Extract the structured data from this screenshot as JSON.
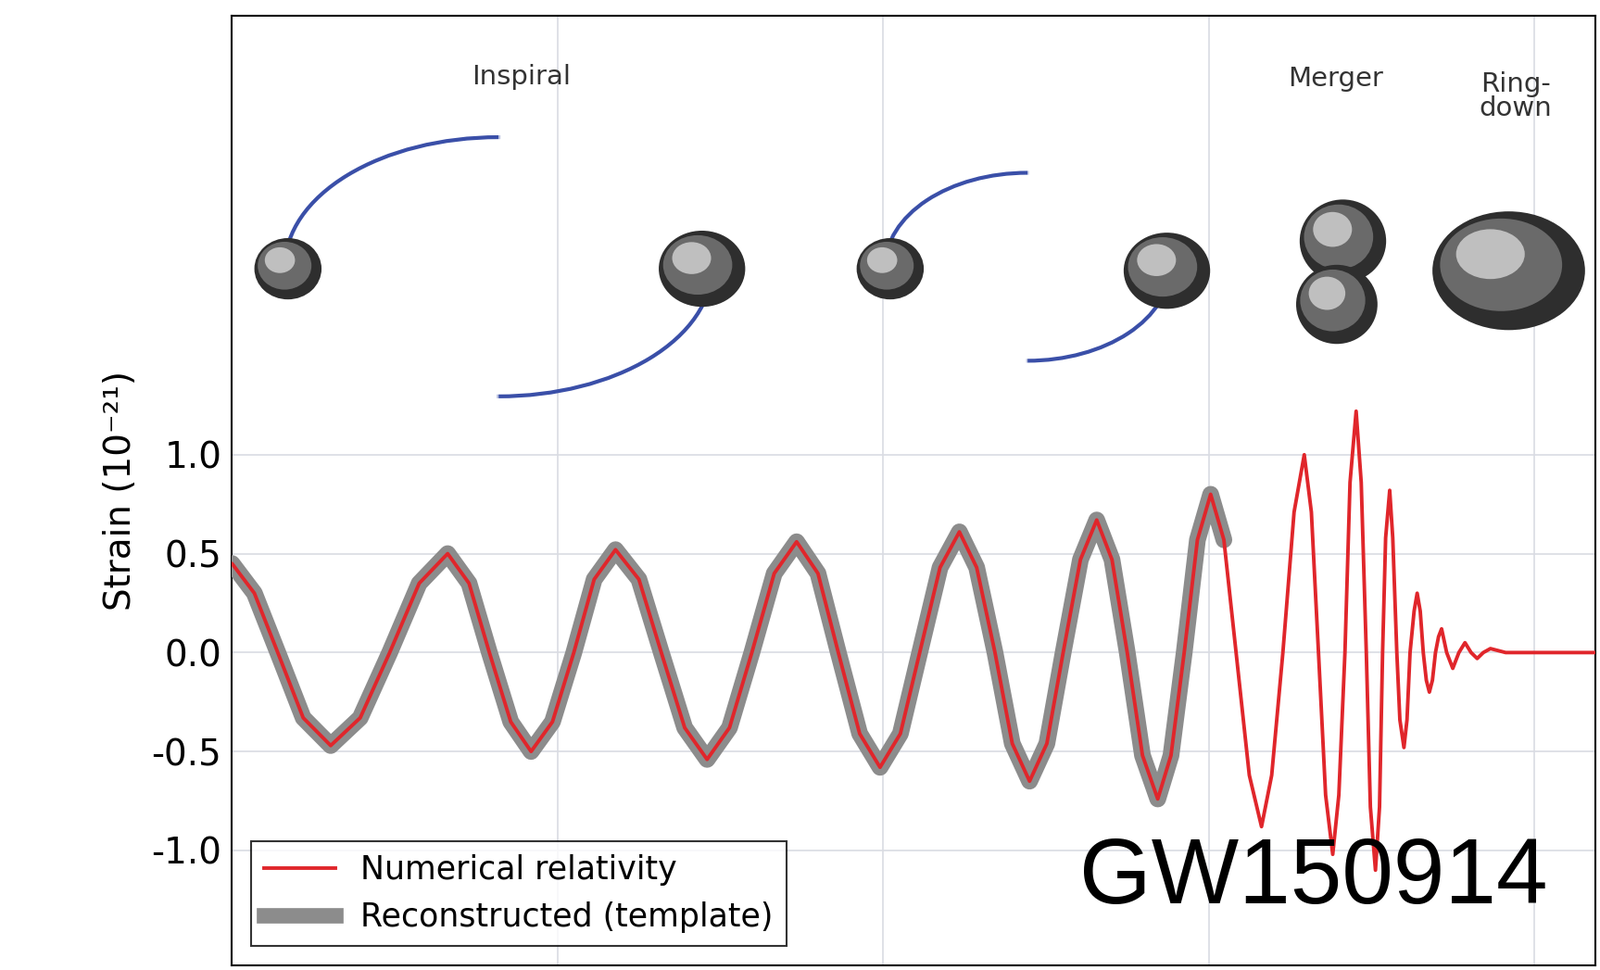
{
  "chart_data": {
    "type": "line",
    "ylabel": "Strain (10⁻²¹)",
    "annotations": [
      "Inspiral",
      "Merger",
      "Ring-\ndown",
      "GW150914"
    ],
    "x": [
      0,
      22,
      45,
      70,
      97,
      126,
      155,
      184,
      212,
      233,
      253,
      274,
      294,
      315,
      336,
      356,
      377,
      400,
      422,
      445,
      467,
      489,
      511,
      533,
      555,
      576,
      596,
      617,
      637,
      657,
      676,
      696,
      715,
      732,
      750,
      767,
      784,
      801,
      817,
      834,
      850,
      865,
      880,
      895,
      910,
      923,
      936,
      949,
      962,
      975,
      987,
      1000,
      1012,
      1022,
      1033,
      1044,
      1054,
      1061,
      1068,
      1075,
      1082,
      1088,
      1094,
      1099,
      1105,
      1110,
      1115,
      1119,
      1124,
      1128,
      1131,
      1134,
      1138,
      1141,
      1145,
      1148,
      1152,
      1155,
      1158,
      1162,
      1165,
      1168,
      1171,
      1174,
      1177,
      1180,
      1183,
      1186,
      1189,
      1194,
      1200,
      1206,
      1212,
      1218,
      1224,
      1230,
      1237,
      1252,
      1340
    ],
    "series": [
      {
        "name": "Reconstructed (template)",
        "color": "#8c8c8c",
        "line_style": "solid",
        "values": [
          0.45,
          0.3,
          0.0,
          -0.33,
          -0.47,
          -0.33,
          0.0,
          0.35,
          0.5,
          0.35,
          0.0,
          -0.35,
          -0.5,
          -0.35,
          0.0,
          0.37,
          0.52,
          0.37,
          0.0,
          -0.38,
          -0.54,
          -0.38,
          0.0,
          0.4,
          0.56,
          0.4,
          0.0,
          -0.41,
          -0.58,
          -0.41,
          0.0,
          0.43,
          0.61,
          0.43,
          0.0,
          -0.46,
          -0.65,
          -0.46,
          0.0,
          0.47,
          0.67,
          0.47,
          0.0,
          -0.52,
          -0.74,
          -0.52,
          0.0,
          0.57,
          0.8,
          0.57,
          null,
          null,
          null,
          null,
          null,
          null,
          null,
          null,
          null,
          null,
          null,
          null,
          null,
          null,
          null,
          null,
          null,
          null,
          null,
          null,
          null,
          null,
          null,
          null,
          null,
          null,
          null,
          null,
          null,
          null,
          null,
          null,
          null,
          null,
          null,
          null,
          null,
          null,
          null,
          null,
          null,
          null,
          null,
          null,
          null,
          null,
          null,
          null,
          null
        ]
      },
      {
        "name": "Numerical relativity",
        "color": "#e0262b",
        "line_style": "solid",
        "values": [
          0.45,
          0.3,
          0.0,
          -0.33,
          -0.47,
          -0.33,
          0.0,
          0.35,
          0.5,
          0.35,
          0.0,
          -0.35,
          -0.5,
          -0.35,
          0.0,
          0.37,
          0.52,
          0.37,
          0.0,
          -0.38,
          -0.54,
          -0.38,
          0.0,
          0.4,
          0.56,
          0.4,
          0.0,
          -0.41,
          -0.58,
          -0.41,
          0.0,
          0.43,
          0.61,
          0.43,
          0.0,
          -0.46,
          -0.65,
          -0.46,
          0.0,
          0.47,
          0.67,
          0.47,
          0.0,
          -0.52,
          -0.74,
          -0.52,
          0.0,
          0.57,
          0.8,
          0.57,
          0.0,
          -0.62,
          -0.88,
          -0.62,
          0.0,
          0.71,
          1.0,
          0.71,
          0.0,
          -0.72,
          -1.02,
          -0.72,
          0.0,
          0.86,
          1.22,
          0.86,
          0.0,
          -0.78,
          -1.1,
          -0.78,
          0.0,
          0.58,
          0.82,
          0.58,
          0.0,
          -0.34,
          -0.48,
          -0.34,
          0.0,
          0.21,
          0.3,
          0.21,
          0.0,
          -0.14,
          -0.2,
          -0.14,
          0.0,
          0.08,
          0.12,
          0.0,
          -0.08,
          0.0,
          0.05,
          0.0,
          -0.03,
          0.0,
          0.02,
          0.0,
          0.0
        ]
      }
    ],
    "xlim": [
      0,
      1340
    ],
    "xticks": [
      320,
      640,
      960,
      1280
    ],
    "ylim": [
      -1.58,
      3.22
    ],
    "yticks": [
      -1.0,
      -0.5,
      0.0,
      0.5,
      1.0
    ],
    "grid": true,
    "legend": "lower left",
    "tick_labels": "y"
  }
}
